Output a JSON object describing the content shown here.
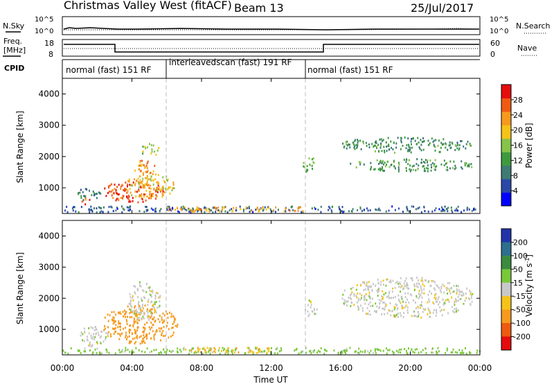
{
  "header": {
    "title": "Christmas Valley West (fitACF)",
    "beam": "Beam 13",
    "date": "25/Jul/2017"
  },
  "strips": {
    "nsky_label": "N.Sky",
    "nsearch_label": "N.Search",
    "log_top": "10^5",
    "log_bottom": "10^0",
    "freq_label_1": "Freq.",
    "freq_label_2": "[MHz]",
    "freq_ticks": [
      "18",
      "8"
    ],
    "nave_label": "Nave",
    "nave_ticks": [
      "60",
      "0"
    ],
    "cpid_label": "CPID"
  },
  "cpid_segments": [
    {
      "label": "normal (fast) 151 RF",
      "start_hour": 0,
      "end_hour": 6
    },
    {
      "label": "interleavedscan (fast) 191 RF",
      "start_hour": 6,
      "end_hour": 14
    },
    {
      "label": "normal (fast) 151 RF",
      "start_hour": 14,
      "end_hour": 24
    }
  ],
  "chart_data": [
    {
      "type": "heatmap",
      "quantity": "Power",
      "ylabel": "Slant Range [km]",
      "yticks": [
        "1000",
        "2000",
        "3000",
        "4000"
      ],
      "ylim": [
        180,
        4500
      ],
      "colorbar_label": "Power [dB]",
      "colorbar_ticks": [
        "4",
        "8",
        "12",
        "16",
        "20",
        "24",
        "28"
      ],
      "colorbar_range": [
        0,
        32
      ],
      "colors": [
        "#0000ff",
        "#2a48a8",
        "#3f7a74",
        "#3e9a3e",
        "#86c34a",
        "#f5c31a",
        "#f59a1e",
        "#ef5a12",
        "#e60d0d"
      ],
      "blobs": [
        {
          "h0": 2.3,
          "h1": 5.8,
          "r0": 550,
          "r1": 1250,
          "value": 27
        },
        {
          "h0": 3.6,
          "h1": 6.4,
          "r0": 650,
          "r1": 1500,
          "value": 20
        },
        {
          "h0": 4.0,
          "h1": 5.3,
          "r0": 1450,
          "r1": 1900,
          "value": 24
        },
        {
          "h0": 4.4,
          "h1": 5.6,
          "r0": 2050,
          "r1": 2450,
          "value": 17
        },
        {
          "h0": 1.0,
          "h1": 1.6,
          "r0": 450,
          "r1": 750,
          "value": 27
        },
        {
          "h0": 0.8,
          "h1": 2.2,
          "r0": 600,
          "r1": 1000,
          "value": 10
        },
        {
          "h0": 13.8,
          "h1": 14.6,
          "r0": 1500,
          "r1": 2000,
          "value": 14
        },
        {
          "h0": 16.0,
          "h1": 23.6,
          "r0": 2150,
          "r1": 2650,
          "value": 11
        },
        {
          "h0": 16.5,
          "h1": 23.6,
          "r0": 1550,
          "r1": 1950,
          "value": 12
        },
        {
          "h0": 0.0,
          "h1": 24.0,
          "r0": 180,
          "r1": 420,
          "value": 7
        },
        {
          "h0": 6.0,
          "h1": 14.0,
          "r0": 250,
          "r1": 400,
          "value": 22
        }
      ]
    },
    {
      "type": "heatmap",
      "quantity": "Velocity",
      "xlabel": "Time UT",
      "xticks": [
        "00:00",
        "04:00",
        "08:00",
        "12:00",
        "16:00",
        "20:00",
        "00:00"
      ],
      "ylabel": "Slant Range [km]",
      "yticks": [
        "1000",
        "2000",
        "3000",
        "4000"
      ],
      "ylim": [
        180,
        4500
      ],
      "colorbar_label": "Velocity [m s^-1]",
      "colorbar_ticks": [
        "200",
        "100",
        "50",
        "15",
        "-15",
        "-50",
        "-100",
        "-200"
      ],
      "colors": [
        "#2233aa",
        "#2e6e8e",
        "#3c8a40",
        "#78c83a",
        "#c8c8c8",
        "#f5c31a",
        "#f59a1e",
        "#ee5a10",
        "#e40c0c"
      ],
      "blobs": [
        {
          "h0": 2.3,
          "h1": 6.6,
          "r0": 550,
          "r1": 1800,
          "value": -70
        },
        {
          "h0": 3.8,
          "h1": 5.6,
          "r0": 1300,
          "r1": 2600,
          "value": 0
        },
        {
          "h0": 0.8,
          "h1": 2.6,
          "r0": 450,
          "r1": 1100,
          "value": 0
        },
        {
          "h0": 13.8,
          "h1": 14.6,
          "r0": 1350,
          "r1": 2000,
          "value": 0
        },
        {
          "h0": 16.0,
          "h1": 23.6,
          "r0": 1400,
          "r1": 2700,
          "value": 0
        },
        {
          "h0": 0.0,
          "h1": 24.0,
          "r0": 180,
          "r1": 420,
          "value": 30
        },
        {
          "h0": 7.0,
          "h1": 12.0,
          "r0": 250,
          "r1": 420,
          "value": -40
        }
      ]
    }
  ]
}
